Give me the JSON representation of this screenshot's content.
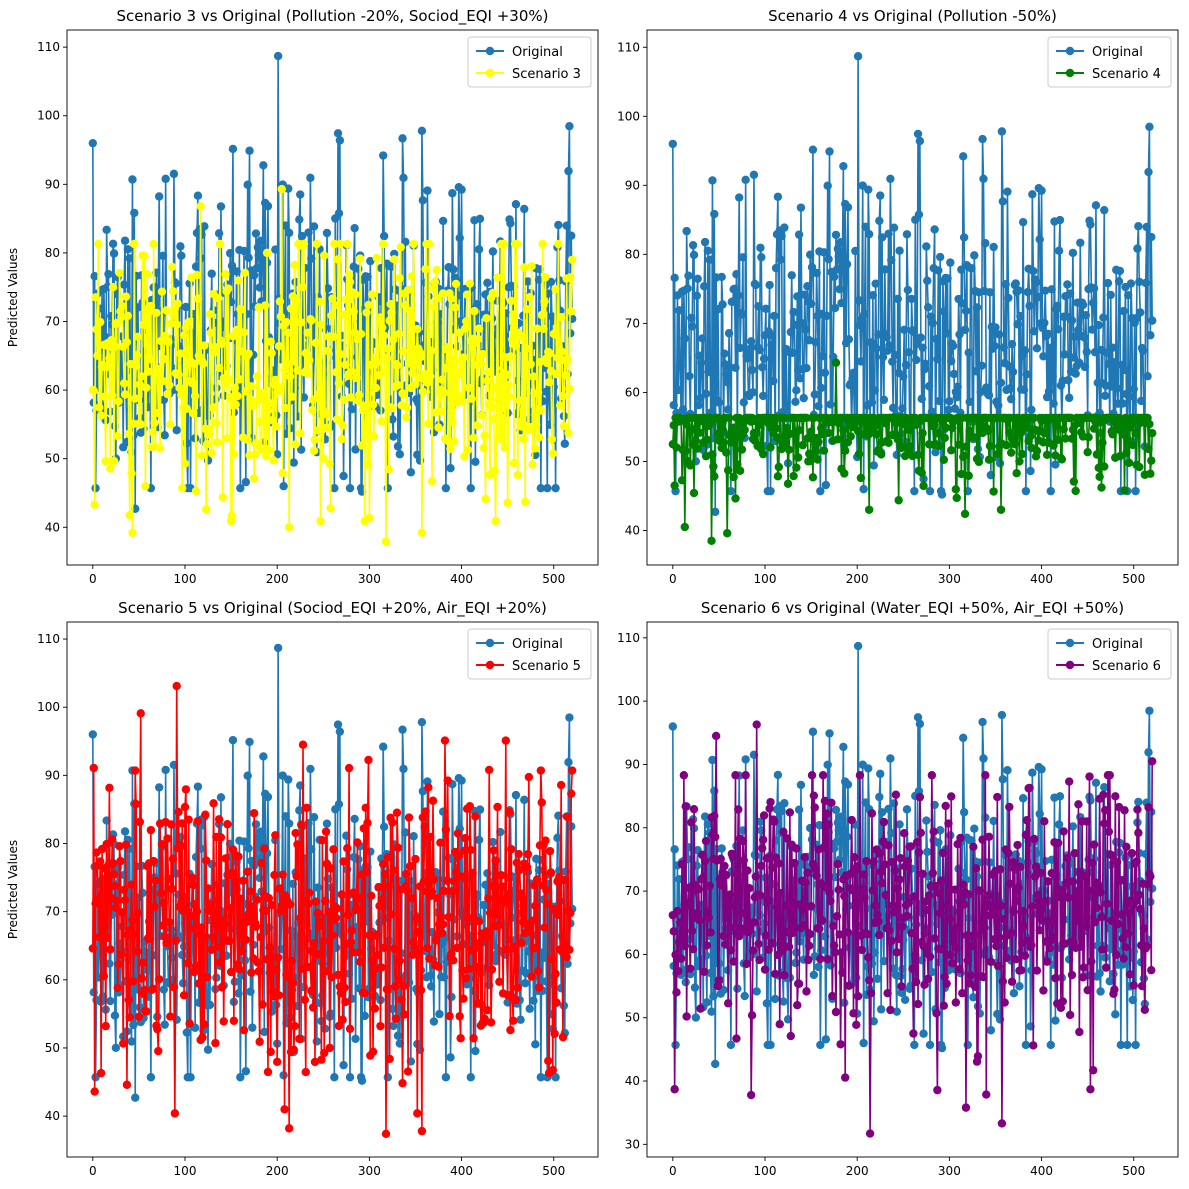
{
  "figure": {
    "background": "#ffffff"
  },
  "chart_data": [
    {
      "type": "line",
      "title": "Scenario 3 vs Original (Pollution -20%, Sociod_EQI +30%)",
      "xlabel": "",
      "ylabel": "Predicted Values",
      "xlim": [
        -28,
        548
      ],
      "ylim": [
        34.5,
        112.5
      ],
      "xticks": [
        0,
        100,
        200,
        300,
        400,
        500
      ],
      "yticks": [
        40,
        50,
        60,
        70,
        80,
        90,
        100,
        110
      ],
      "legend": "top-right",
      "grid": false,
      "series": [
        {
          "name": "Original",
          "color": "#1f77b4",
          "seed": 11,
          "n": 521,
          "mean": 67,
          "spread": 10.5,
          "min": 42.7,
          "max": 108.7,
          "anchors": [
            [
              0,
              96.0
            ],
            [
              2,
              76.6
            ],
            [
              46,
              42.7
            ],
            [
              170,
              94.9
            ],
            [
              201,
              108.7
            ],
            [
              292,
              45.2
            ],
            [
              315,
              94.2
            ],
            [
              336,
              96.7
            ],
            [
              357,
              97.8
            ],
            [
              390,
              88.7
            ],
            [
              459,
              87.1
            ],
            [
              520,
              70.4
            ]
          ]
        },
        {
          "name": "Scenario 3",
          "color": "#ffff00",
          "seed": 23,
          "n": 521,
          "mean": 63,
          "spread": 9.5,
          "min": 37.9,
          "max": 89.3,
          "anchors": [
            [
              0,
              60.0
            ],
            [
              2,
              43.3
            ],
            [
              40,
              41.8
            ],
            [
              43,
              39.2
            ],
            [
              117,
              86.8
            ],
            [
              205,
              89.3
            ],
            [
              213,
              40.0
            ],
            [
              318,
              37.9
            ],
            [
              357,
              39.2
            ],
            [
              520,
              79.0
            ]
          ]
        }
      ]
    },
    {
      "type": "line",
      "title": "Scenario 4 vs Original (Pollution -50%)",
      "xlabel": "",
      "ylabel": "",
      "xlim": [
        -28,
        548
      ],
      "ylim": [
        35,
        112.5
      ],
      "xticks": [
        0,
        100,
        200,
        300,
        400,
        500
      ],
      "yticks": [
        40,
        50,
        60,
        70,
        80,
        90,
        100,
        110
      ],
      "legend": "top-right",
      "grid": false,
      "series": [
        {
          "name": "Original",
          "color": "#1f77b4",
          "seed": 11,
          "n": 521,
          "mean": 67,
          "spread": 10.5,
          "min": 42.7,
          "max": 108.7,
          "anchors": [
            [
              0,
              96.0
            ],
            [
              2,
              76.6
            ],
            [
              46,
              42.7
            ],
            [
              170,
              94.9
            ],
            [
              201,
              108.7
            ],
            [
              292,
              45.2
            ],
            [
              315,
              94.2
            ],
            [
              336,
              96.7
            ],
            [
              357,
              97.8
            ],
            [
              390,
              88.7
            ],
            [
              459,
              87.1
            ],
            [
              520,
              70.4
            ]
          ]
        },
        {
          "name": "Scenario 4",
          "color": "#008000",
          "seed": 37,
          "n": 521,
          "mean": 56,
          "spread": 4.2,
          "min": 38.5,
          "max": 64.3,
          "anchors": [
            [
              0,
              52.5
            ],
            [
              2,
              46.5
            ],
            [
              13,
              40.5
            ],
            [
              42,
              38.5
            ],
            [
              59,
              39.6
            ],
            [
              177,
              64.3
            ],
            [
              213,
              43.0
            ],
            [
              317,
              42.4
            ],
            [
              356,
              43.0
            ],
            [
              520,
              54.1
            ]
          ]
        }
      ]
    },
    {
      "type": "line",
      "title": "Scenario 5 vs Original (Sociod_EQI +20%, Air_EQI +20%)",
      "xlabel": "",
      "ylabel": "Predicted Values",
      "xlim": [
        -28,
        548
      ],
      "ylim": [
        34,
        112.5
      ],
      "xticks": [
        0,
        100,
        200,
        300,
        400,
        500
      ],
      "yticks": [
        40,
        50,
        60,
        70,
        80,
        90,
        100,
        110
      ],
      "legend": "top-right",
      "grid": false,
      "series": [
        {
          "name": "Original",
          "color": "#1f77b4",
          "seed": 11,
          "n": 521,
          "mean": 67,
          "spread": 10.5,
          "min": 42.7,
          "max": 108.7,
          "anchors": [
            [
              0,
              96.0
            ],
            [
              2,
              76.6
            ],
            [
              46,
              42.7
            ],
            [
              170,
              94.9
            ],
            [
              201,
              108.7
            ],
            [
              292,
              45.2
            ],
            [
              315,
              94.2
            ],
            [
              336,
              96.7
            ],
            [
              357,
              97.8
            ],
            [
              390,
              88.7
            ],
            [
              459,
              87.1
            ],
            [
              520,
              70.4
            ]
          ]
        },
        {
          "name": "Scenario 5",
          "color": "#ff0000",
          "seed": 53,
          "n": 521,
          "mean": 68,
          "spread": 10,
          "min": 37.4,
          "max": 103.1,
          "anchors": [
            [
              0,
              64.6
            ],
            [
              2,
              43.6
            ],
            [
              37,
              44.6
            ],
            [
              52,
              99.1
            ],
            [
              91,
              103.1
            ],
            [
              213,
              38.2
            ],
            [
              318,
              37.4
            ],
            [
              357,
              37.8
            ],
            [
              520,
              90.7
            ]
          ]
        }
      ]
    },
    {
      "type": "line",
      "title": "Scenario 6 vs Original (Water_EQI +50%, Air_EQI +50%)",
      "xlabel": "",
      "ylabel": "",
      "xlim": [
        -28,
        548
      ],
      "ylim": [
        28,
        112.5
      ],
      "xticks": [
        0,
        100,
        200,
        300,
        400,
        500
      ],
      "yticks": [
        30,
        40,
        50,
        60,
        70,
        80,
        90,
        100,
        110
      ],
      "legend": "top-right",
      "grid": false,
      "series": [
        {
          "name": "Original",
          "color": "#1f77b4",
          "seed": 11,
          "n": 521,
          "mean": 67,
          "spread": 10.5,
          "min": 42.7,
          "max": 108.7,
          "anchors": [
            [
              0,
              96.0
            ],
            [
              2,
              76.6
            ],
            [
              46,
              42.7
            ],
            [
              170,
              94.9
            ],
            [
              201,
              108.7
            ],
            [
              292,
              45.2
            ],
            [
              315,
              94.2
            ],
            [
              336,
              96.7
            ],
            [
              357,
              97.8
            ],
            [
              390,
              88.7
            ],
            [
              459,
              87.1
            ],
            [
              520,
              70.4
            ]
          ]
        },
        {
          "name": "Scenario 6",
          "color": "#800080",
          "seed": 71,
          "n": 521,
          "mean": 68,
          "spread": 10,
          "min": 31.7,
          "max": 96.3,
          "anchors": [
            [
              0,
              66.2
            ],
            [
              2,
              38.7
            ],
            [
              47,
              94.5
            ],
            [
              91,
              96.3
            ],
            [
              214,
              31.7
            ],
            [
              318,
              35.8
            ],
            [
              357,
              33.3
            ],
            [
              456,
              41.7
            ],
            [
              520,
              90.5
            ]
          ]
        }
      ]
    }
  ]
}
